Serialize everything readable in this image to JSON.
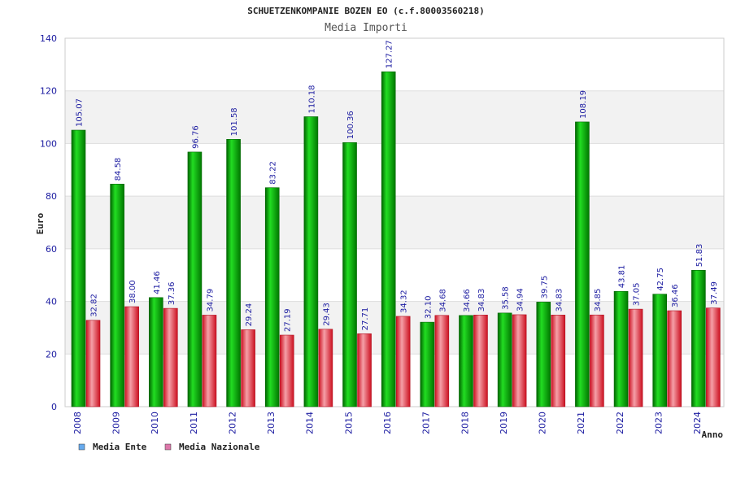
{
  "chart_data": {
    "type": "bar",
    "title": "SCHUETZENKOMPANIE BOZEN EO (c.f.80003560218)",
    "subtitle": "Media Importi",
    "xlabel": "Anno",
    "ylabel": "Euro",
    "ylim": [
      0,
      140
    ],
    "yticks": [
      0,
      20,
      40,
      60,
      80,
      100,
      120,
      140
    ],
    "grid": true,
    "legend_position": "bottom-left",
    "categories": [
      "2008",
      "2009",
      "2010",
      "2011",
      "2012",
      "2013",
      "2014",
      "2015",
      "2016",
      "2017",
      "2018",
      "2019",
      "2020",
      "2021",
      "2022",
      "2023",
      "2024"
    ],
    "series": [
      {
        "name": "Media Ente",
        "color": "#00aa00",
        "legend_color": "#66aaee",
        "values": [
          105.07,
          84.58,
          41.46,
          96.76,
          101.58,
          83.22,
          110.18,
          100.36,
          127.27,
          32.1,
          34.66,
          35.58,
          39.75,
          108.19,
          43.81,
          42.75,
          51.83
        ],
        "labels": [
          "105.07",
          "84.58",
          "41.46",
          "96.76",
          "101.58",
          "83.22",
          "110.18",
          "100.36",
          "127.27",
          "32.10",
          "34.66",
          "35.58",
          "39.75",
          "108.19",
          "43.81",
          "42.75",
          "51.83"
        ]
      },
      {
        "name": "Media Nazionale",
        "color": "#e8303c",
        "legend_color": "#dd77aa",
        "values": [
          32.82,
          38.0,
          37.36,
          34.79,
          29.24,
          27.19,
          29.43,
          27.71,
          34.32,
          34.68,
          34.83,
          34.94,
          34.83,
          34.85,
          37.05,
          36.46,
          37.49
        ],
        "labels": [
          "32.82",
          "38.00",
          "37.36",
          "34.79",
          "29.24",
          "27.19",
          "29.43",
          "27.71",
          "34.32",
          "34.68",
          "34.83",
          "34.94",
          "34.83",
          "34.85",
          "37.05",
          "36.46",
          "37.49"
        ]
      }
    ]
  }
}
